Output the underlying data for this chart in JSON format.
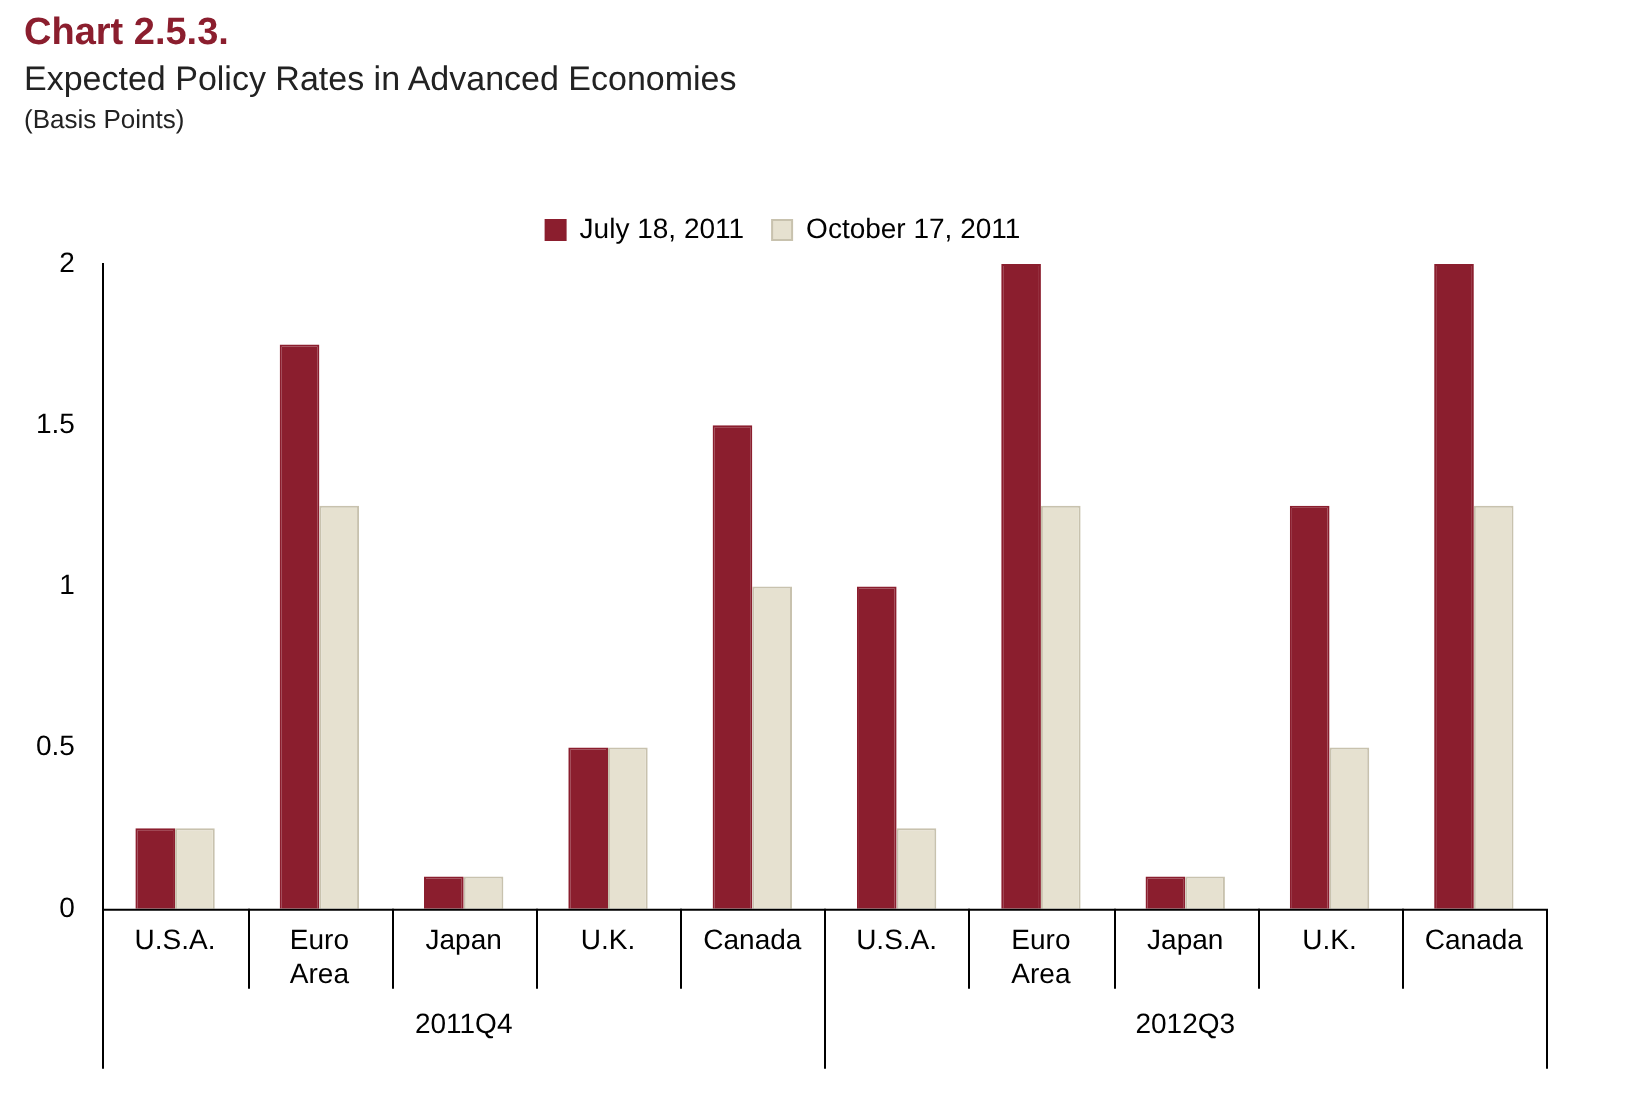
{
  "chart_data": {
    "type": "bar",
    "title": "Chart 2.5.3.",
    "subtitle": "Expected Policy Rates in Advanced Economies",
    "categories": [
      "U.S.A.",
      "Euro Area",
      "Japan",
      "U.K.",
      "Canada",
      "U.S.A.",
      "Euro Area",
      "Japan",
      "U.K.",
      "Canada"
    ],
    "series": [
      {
        "name": "July 18, 2011",
        "color": "#8b1e2e",
        "values": [
          0.25,
          1.75,
          0.1,
          0.5,
          1.5,
          1.0,
          2.0,
          0.1,
          1.25,
          2.0
        ]
      },
      {
        "name": "October 17, 2011",
        "color": "#e6e1d0",
        "values": [
          0.25,
          1.25,
          0.1,
          0.5,
          1.0,
          0.25,
          1.25,
          0.1,
          0.5,
          1.25
        ]
      }
    ],
    "annotations": [
      "(Basis Points)",
      "2011Q4",
      "2012Q3"
    ],
    "ylim": [
      0,
      2
    ],
    "yticks": [
      0,
      0.5,
      1,
      1.5,
      2
    ],
    "grid": false,
    "legend": "top"
  }
}
